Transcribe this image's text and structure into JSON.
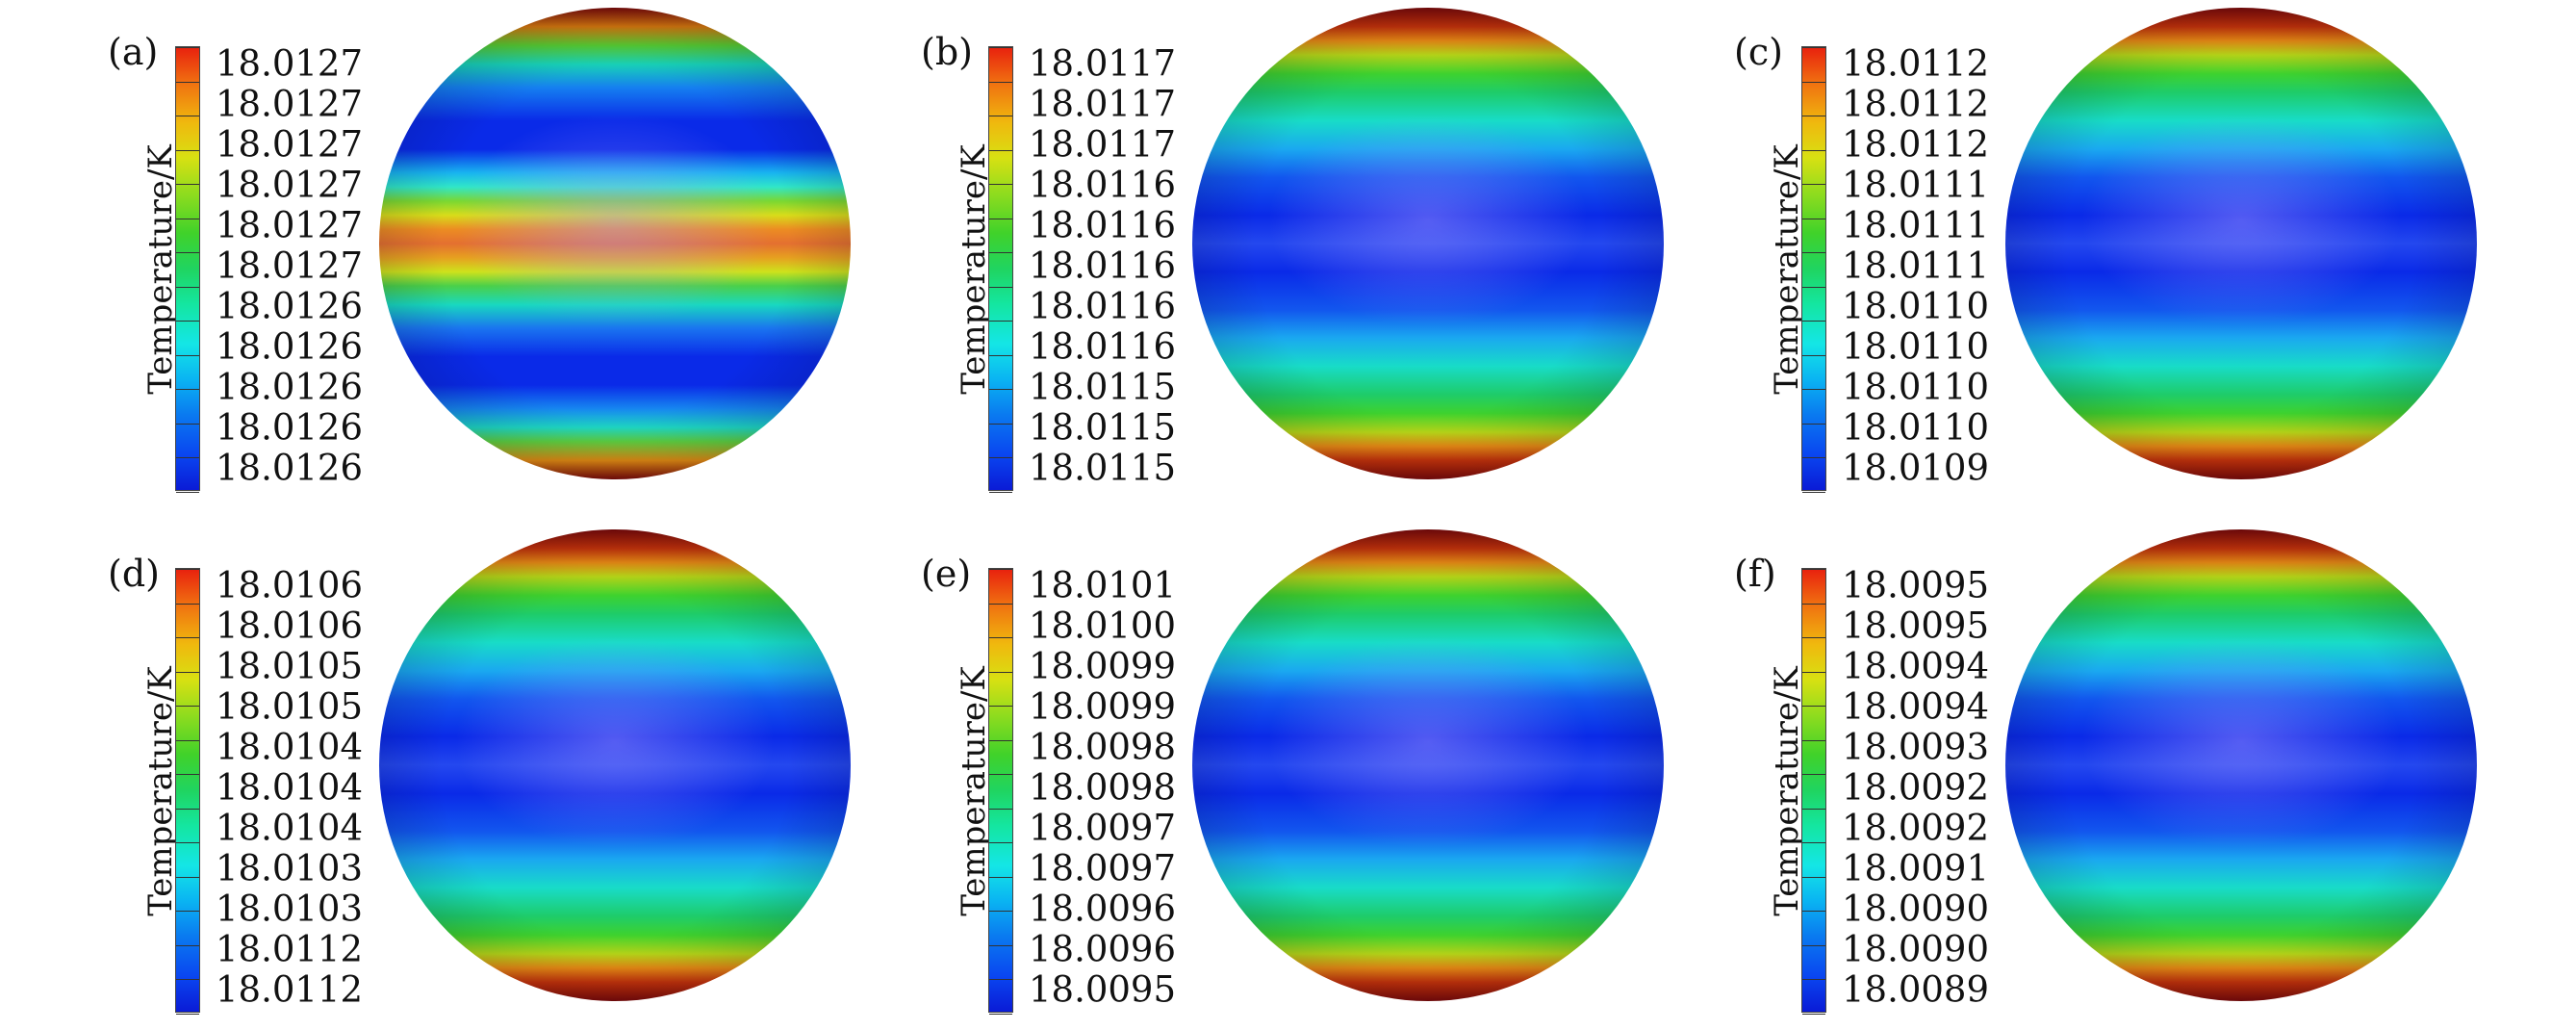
{
  "colorbar_title": "Temperature/K",
  "panels": [
    {
      "label": "(a)",
      "ticks": [
        "18.0127",
        "18.0127",
        "18.0127",
        "18.0127",
        "18.0127",
        "18.0127",
        "18.0126",
        "18.0126",
        "18.0126",
        "18.0126",
        "18.0126"
      ]
    },
    {
      "label": "(b)",
      "ticks": [
        "18.0117",
        "18.0117",
        "18.0117",
        "18.0116",
        "18.0116",
        "18.0116",
        "18.0116",
        "18.0116",
        "18.0115",
        "18.0115",
        "18.0115"
      ]
    },
    {
      "label": "(c)",
      "ticks": [
        "18.0112",
        "18.0112",
        "18.0112",
        "18.0111",
        "18.0111",
        "18.0111",
        "18.0110",
        "18.0110",
        "18.0110",
        "18.0110",
        "18.0109"
      ]
    },
    {
      "label": "(d)",
      "ticks": [
        "18.0106",
        "18.0106",
        "18.0105",
        "18.0105",
        "18.0104",
        "18.0104",
        "18.0104",
        "18.0103",
        "18.0103",
        "18.0112",
        "18.0112"
      ]
    },
    {
      "label": "(e)",
      "ticks": [
        "18.0101",
        "18.0100",
        "18.0099",
        "18.0099",
        "18.0098",
        "18.0098",
        "18.0097",
        "18.0097",
        "18.0096",
        "18.0096",
        "18.0095"
      ]
    },
    {
      "label": "(f)",
      "ticks": [
        "18.0095",
        "18.0095",
        "18.0094",
        "18.0094",
        "18.0093",
        "18.0092",
        "18.0092",
        "18.0091",
        "18.0090",
        "18.0090",
        "18.0089"
      ]
    }
  ],
  "colormap": [
    "#0a1bd6",
    "#0ab4f2",
    "#14e6e6",
    "#20d460",
    "#d8e012",
    "#f07010",
    "#e8200e"
  ]
}
